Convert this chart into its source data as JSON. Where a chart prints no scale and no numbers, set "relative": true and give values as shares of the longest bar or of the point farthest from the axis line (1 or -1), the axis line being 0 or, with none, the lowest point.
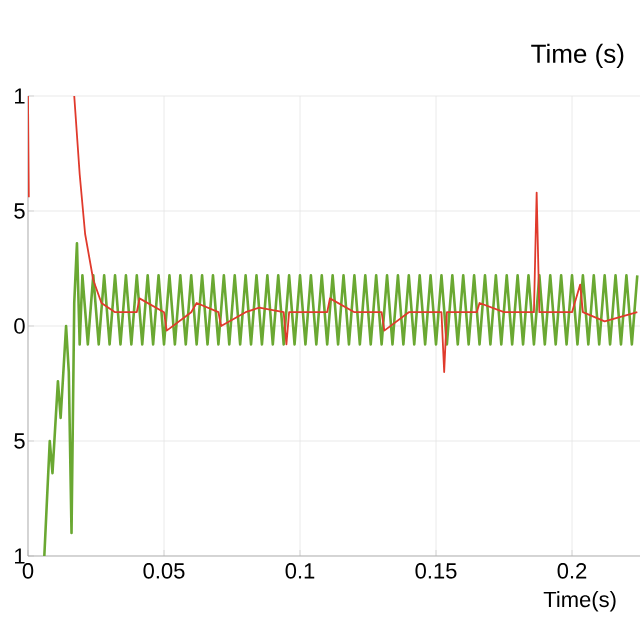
{
  "chart_data": {
    "type": "line",
    "xlabel": "Time(s)",
    "relative": true,
    "annotations": [
      "Time (s)",
      "1",
      "5",
      "0",
      "5",
      "1"
    ],
    "xlim": [
      0,
      0.225
    ],
    "xticks": [
      0,
      0.05,
      0.1,
      0.15,
      0.2
    ],
    "grid": true,
    "series": [
      {
        "color": "#6aa832",
        "x": [
          0.006,
          0.008,
          0.009,
          0.011,
          0.012,
          0.014,
          0.015,
          0.016,
          0.017,
          0.018,
          0.019,
          0.02,
          0.022,
          0.024,
          0.026,
          0.028,
          0.03,
          0.032,
          0.034,
          0.036,
          0.038,
          0.04,
          0.042,
          0.044,
          0.046,
          0.048,
          0.05,
          0.052,
          0.054,
          0.056,
          0.058,
          0.06,
          0.062,
          0.064,
          0.066,
          0.068,
          0.07,
          0.072,
          0.074,
          0.076,
          0.078,
          0.08,
          0.082,
          0.084,
          0.086,
          0.088,
          0.09,
          0.092,
          0.094,
          0.096,
          0.098,
          0.1,
          0.102,
          0.104,
          0.106,
          0.108,
          0.11,
          0.112,
          0.114,
          0.116,
          0.118,
          0.12,
          0.122,
          0.124,
          0.126,
          0.128,
          0.13,
          0.132,
          0.134,
          0.136,
          0.138,
          0.14,
          0.142,
          0.144,
          0.146,
          0.148,
          0.15,
          0.152,
          0.154,
          0.156,
          0.158,
          0.16,
          0.162,
          0.164,
          0.166,
          0.168,
          0.17,
          0.172,
          0.174,
          0.176,
          0.178,
          0.18,
          0.182,
          0.184,
          0.186,
          0.188,
          0.19,
          0.192,
          0.194,
          0.196,
          0.198,
          0.2,
          0.202,
          0.204,
          0.206,
          0.208,
          0.21,
          0.212,
          0.214,
          0.216,
          0.218,
          0.22,
          0.222,
          0.224
        ],
        "values": [
          0.0,
          0.25,
          0.18,
          0.38,
          0.3,
          0.5,
          0.4,
          0.05,
          0.55,
          0.68,
          0.46,
          0.61,
          0.46,
          0.61,
          0.46,
          0.61,
          0.46,
          0.61,
          0.46,
          0.61,
          0.46,
          0.61,
          0.46,
          0.61,
          0.46,
          0.61,
          0.46,
          0.61,
          0.46,
          0.61,
          0.46,
          0.61,
          0.46,
          0.61,
          0.46,
          0.61,
          0.46,
          0.61,
          0.46,
          0.61,
          0.46,
          0.61,
          0.46,
          0.61,
          0.46,
          0.61,
          0.46,
          0.61,
          0.46,
          0.61,
          0.46,
          0.61,
          0.46,
          0.61,
          0.46,
          0.61,
          0.46,
          0.61,
          0.46,
          0.61,
          0.46,
          0.61,
          0.46,
          0.61,
          0.46,
          0.61,
          0.46,
          0.61,
          0.46,
          0.61,
          0.46,
          0.61,
          0.46,
          0.61,
          0.46,
          0.61,
          0.46,
          0.61,
          0.46,
          0.61,
          0.46,
          0.61,
          0.46,
          0.61,
          0.46,
          0.61,
          0.46,
          0.61,
          0.46,
          0.61,
          0.46,
          0.61,
          0.46,
          0.61,
          0.46,
          0.61,
          0.46,
          0.61,
          0.46,
          0.61,
          0.46,
          0.61,
          0.46,
          0.61,
          0.46,
          0.61,
          0.46,
          0.61,
          0.46,
          0.61,
          0.46,
          0.61,
          0.46,
          0.61
        ]
      },
      {
        "color": "#e03a2c",
        "x": [
          0,
          0.0003,
          0.01,
          0.017,
          0.019,
          0.021,
          0.024,
          0.027,
          0.032,
          0.04,
          0.041,
          0.05,
          0.051,
          0.06,
          0.062,
          0.07,
          0.071,
          0.08,
          0.085,
          0.094,
          0.095,
          0.096,
          0.11,
          0.111,
          0.12,
          0.13,
          0.131,
          0.14,
          0.152,
          0.153,
          0.154,
          0.165,
          0.166,
          0.175,
          0.186,
          0.187,
          0.188,
          0.2,
          0.203,
          0.204,
          0.212,
          0.224
        ],
        "values": [
          1.0,
          0.78,
          null,
          1.0,
          0.83,
          0.7,
          0.6,
          0.55,
          0.53,
          0.53,
          0.56,
          0.53,
          0.49,
          0.53,
          0.55,
          0.53,
          0.5,
          0.53,
          0.54,
          0.53,
          0.46,
          0.53,
          0.53,
          0.56,
          0.53,
          0.53,
          0.49,
          0.53,
          0.53,
          0.4,
          0.53,
          0.53,
          0.55,
          0.53,
          0.53,
          0.79,
          0.53,
          0.53,
          0.59,
          0.53,
          0.51,
          0.53
        ]
      }
    ]
  }
}
